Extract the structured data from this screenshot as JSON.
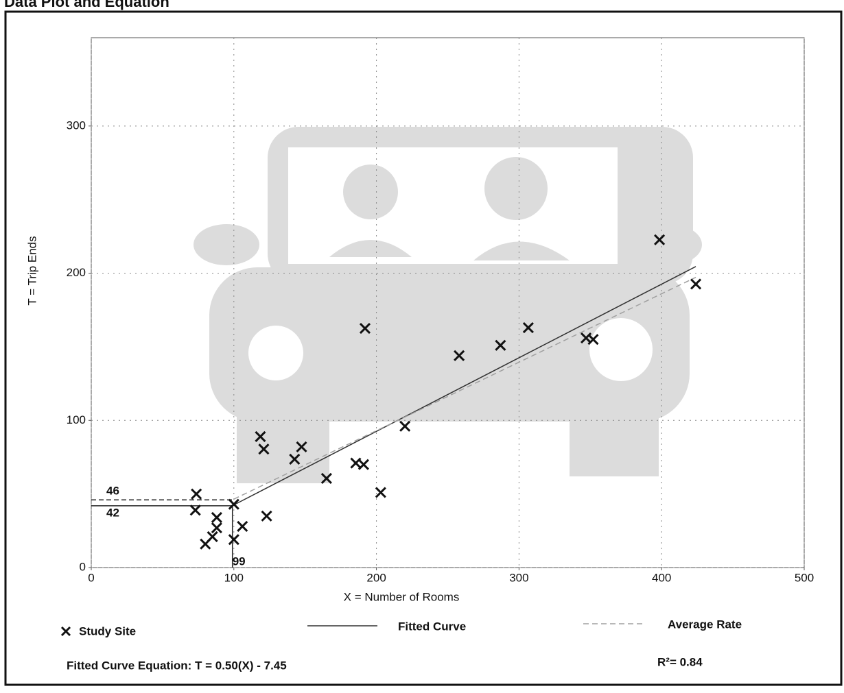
{
  "chart_data": {
    "type": "scatter",
    "title": "Data Plot and Equation",
    "x_label": "X = Number of Rooms",
    "y_label": "T = Trip Ends",
    "xlim": [
      0,
      500
    ],
    "xticks": [
      0,
      100,
      200,
      300,
      400,
      500
    ],
    "ylim": [
      0,
      360
    ],
    "yticks": [
      0,
      100,
      200,
      300
    ],
    "grid": true,
    "series": [
      {
        "name": "Study Site",
        "color": "#111111",
        "marker": "x",
        "x": [
          73.7,
          73,
          80,
          85,
          88,
          88,
          100,
          100,
          106,
          118.6,
          121,
          123,
          142.6,
          147.5,
          165,
          185.5,
          191,
          192,
          203,
          220,
          258,
          287,
          306.5,
          347,
          352,
          398.5,
          424
        ],
        "values": [
          50,
          39,
          16,
          21,
          34,
          27,
          43,
          19,
          28,
          89,
          80.5,
          35,
          73.6,
          82,
          60.6,
          71,
          70,
          162.5,
          51,
          96,
          144,
          151,
          163,
          156,
          155,
          222.7,
          192.6
        ]
      },
      {
        "name": "Fitted Curve",
        "color": "#333333",
        "marker": "line",
        "line_style": "solid",
        "x": [
          100,
          424
        ],
        "values": [
          42.55,
          204.55
        ]
      },
      {
        "name": "Average Rate",
        "color": "#a0a0a0",
        "marker": "line",
        "line_style": "dashed",
        "x": [
          100,
          424
        ],
        "values": [
          46.5,
          197.2
        ]
      }
    ],
    "reference_x": 99,
    "reference_fitted_y": 42,
    "reference_average_y": 46,
    "equation": "Fitted Curve Equation: T = 0.50(X) - 7.45",
    "r_squared": "R²= 0.84"
  }
}
